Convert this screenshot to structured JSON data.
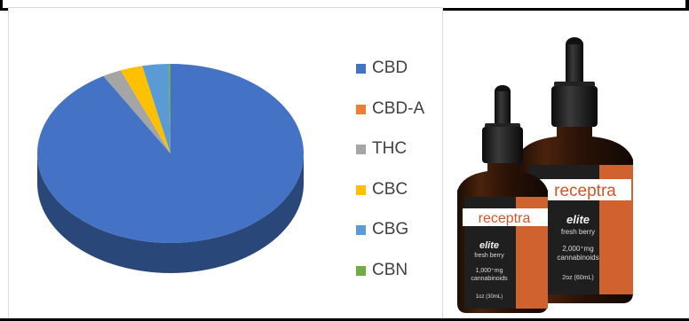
{
  "chart_data": {
    "type": "pie",
    "categories": [
      "CBD",
      "CBD-A",
      "THC",
      "CBC",
      "CBG",
      "CBN"
    ],
    "values": [
      91.6,
      0.0,
      2.3,
      2.7,
      3.2,
      0.2
    ],
    "colors": [
      "#4472C4",
      "#ED7D31",
      "#A5A5A5",
      "#FFC000",
      "#5B9BD5",
      "#70AD47"
    ],
    "legend_position": "right",
    "style": "3d"
  },
  "product": {
    "small_bottle": {
      "brand": "receptra",
      "line": "elite",
      "flavor": "fresh berry",
      "potency": "1,000⁺mg",
      "potency_unit": "cannabinoids",
      "volume": "1oz (30mL)"
    },
    "large_bottle": {
      "brand": "receptra",
      "line": "elite",
      "flavor": "fresh berry",
      "potency": "2,000⁺mg",
      "potency_unit": "cannabinoids",
      "volume": "2oz (60mL)"
    }
  }
}
